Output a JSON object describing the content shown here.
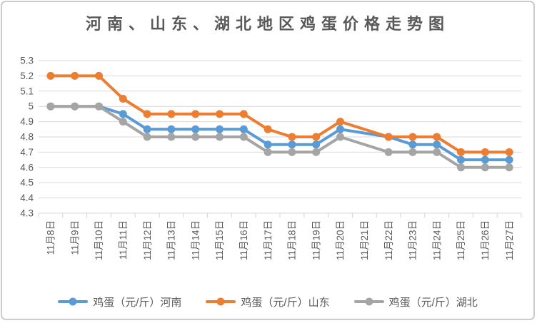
{
  "title": "河南、山东、湖北地区鸡蛋价格走势图",
  "colors": {
    "henan": "#5B9BD5",
    "shandong": "#ED7D31",
    "hubei": "#A5A5A5",
    "grid": "#D9D9D9",
    "axis_line": "#D3D3D3",
    "axis_text": "#595959",
    "card_border": "#CBCBCB"
  },
  "chart_data": {
    "type": "line",
    "title": "河南、山东、湖北地区鸡蛋价格走势图",
    "categories": [
      "11月8日",
      "11月9日",
      "11月10日",
      "11月11日",
      "11月12日",
      "11月13日",
      "11月14日",
      "11月15日",
      "11月16日",
      "11月17日",
      "11月18日",
      "11月19日",
      "11月20日",
      "11月21日",
      "11月22日",
      "11月23日",
      "11月24日",
      "11月25日",
      "11月26日",
      "11月27日"
    ],
    "series": [
      {
        "name": "鸡蛋（元/斤）河南",
        "key": "henan",
        "color": "#5B9BD5",
        "values": [
          5.0,
          5.0,
          5.0,
          4.95,
          4.85,
          4.85,
          4.85,
          4.85,
          4.85,
          4.75,
          4.75,
          4.75,
          4.85,
          null,
          4.8,
          4.75,
          4.75,
          4.65,
          4.65,
          4.65
        ]
      },
      {
        "name": "鸡蛋（元/斤）山东",
        "key": "shandong",
        "color": "#ED7D31",
        "values": [
          5.2,
          5.2,
          5.2,
          5.05,
          4.95,
          4.95,
          4.95,
          4.95,
          4.95,
          4.85,
          4.8,
          4.8,
          4.9,
          null,
          4.8,
          4.8,
          4.8,
          4.7,
          4.7,
          4.7
        ]
      },
      {
        "name": "鸡蛋（元/斤）湖北",
        "key": "hubei",
        "color": "#A5A5A5",
        "values": [
          5.0,
          5.0,
          5.0,
          4.9,
          4.8,
          4.8,
          4.8,
          4.8,
          4.8,
          4.7,
          4.7,
          4.7,
          4.8,
          null,
          4.7,
          4.7,
          4.7,
          4.6,
          4.6,
          4.6
        ]
      }
    ],
    "ylim": [
      4.3,
      5.3
    ],
    "ytick_step": 0.1,
    "ytick_labels": [
      "5.3",
      "5.2",
      "5.1",
      "5",
      "4.9",
      "4.8",
      "4.7",
      "4.6",
      "4.5",
      "4.4",
      "4.3"
    ],
    "grid": true,
    "legend_position": "bottom",
    "missing_dates": [
      "11月21日"
    ]
  }
}
